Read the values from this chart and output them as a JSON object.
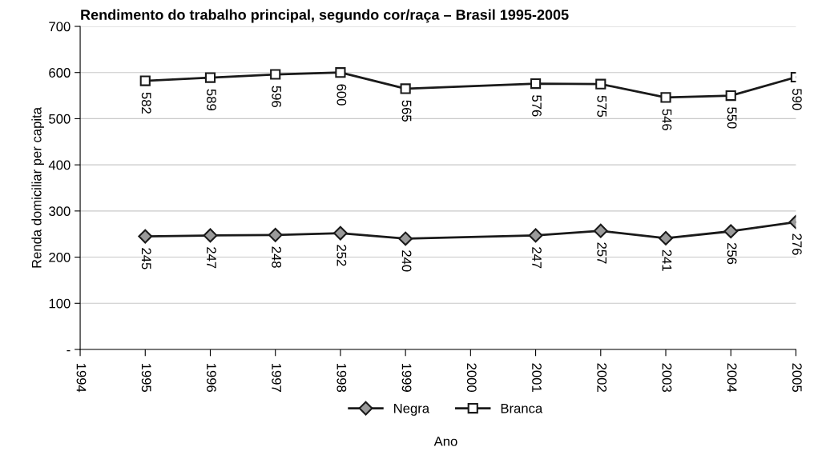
{
  "chart_data": {
    "type": "line",
    "title": "Rendimento do trabalho principal, segundo cor/raça – Brasil 1995-2005",
    "xlabel": "Ano",
    "ylabel": "Renda domiciliar per capita",
    "x": [
      1995,
      1996,
      1997,
      1998,
      1999,
      2001,
      2002,
      2003,
      2004,
      2005
    ],
    "series": [
      {
        "name": "Negra",
        "color": "#1a1a1a",
        "marker": "diamond",
        "values": [
          245,
          247,
          248,
          252,
          240,
          247,
          257,
          241,
          256,
          276
        ]
      },
      {
        "name": "Branca",
        "color": "#1a1a1a",
        "marker": "square",
        "values": [
          582,
          589,
          596,
          600,
          565,
          576,
          575,
          546,
          550,
          590
        ]
      }
    ],
    "xlim": [
      1994,
      2005
    ],
    "xticks": [
      1994,
      1995,
      1996,
      1997,
      1998,
      1999,
      2000,
      2001,
      2002,
      2003,
      2004,
      2005
    ],
    "ylim": [
      0,
      700
    ],
    "yticks": [
      {
        "value": 0,
        "label": "-"
      },
      100,
      200,
      300,
      400,
      500,
      600,
      700
    ],
    "grid": "y",
    "legend": "bottom",
    "data_labels": true,
    "line_style": "solid"
  }
}
